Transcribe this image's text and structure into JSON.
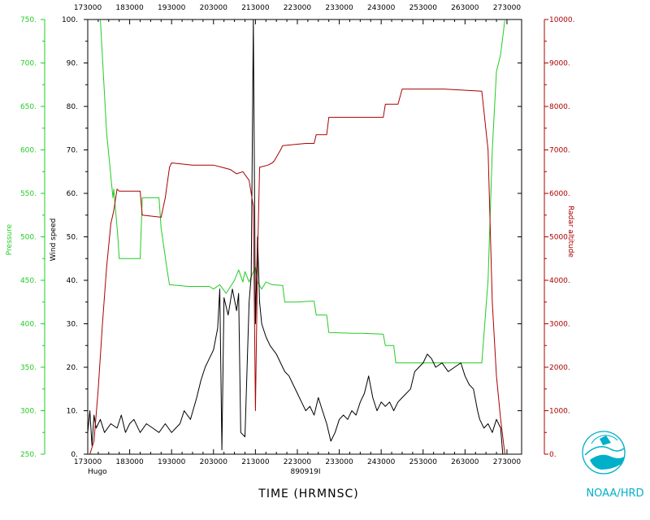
{
  "colors": {
    "pressure": "#22cc22",
    "wind": "#000000",
    "radar": "#aa0000",
    "axis": "#000000",
    "logo": "#00b0c8"
  },
  "chart_data": {
    "type": "line",
    "xlabel": "TIME (HRMNSC)",
    "storm_name": "Hugo",
    "flight_id": "890919I",
    "credit": "NOAA/HRD",
    "x_ticks": [
      "173000",
      "183000",
      "193000",
      "203000",
      "213000",
      "223000",
      "233000",
      "243000",
      "253000",
      "263000",
      "273000"
    ],
    "xlim": [
      0,
      10.35
    ],
    "axes": {
      "wind": {
        "label": "Wind speed",
        "ylim": [
          0,
          100
        ],
        "ticks": [
          "0.",
          "10.",
          "20.",
          "30.",
          "40.",
          "50.",
          "60.",
          "70.",
          "80.",
          "90.",
          "100."
        ]
      },
      "pressure": {
        "label": "Pressure",
        "ylim": [
          250,
          750
        ],
        "ticks": [
          "250.",
          "300.",
          "350.",
          "400.",
          "450.",
          "500.",
          "550.",
          "600.",
          "650.",
          "700.",
          "750."
        ]
      },
      "radar": {
        "label": "Radar altitude",
        "ylim": [
          0,
          10000
        ],
        "ticks": [
          "0.",
          "1000.",
          "2000.",
          "3000.",
          "4000.",
          "5000.",
          "6000.",
          "7000.",
          "8000.",
          "9000.",
          "10000."
        ]
      }
    },
    "series": [
      {
        "name": "Pressure",
        "axis": "pressure",
        "points": [
          [
            0.3,
            750
          ],
          [
            0.45,
            620
          ],
          [
            0.6,
            545
          ],
          [
            0.62,
            555
          ],
          [
            0.72,
            500
          ],
          [
            0.75,
            475
          ],
          [
            1.25,
            475
          ],
          [
            1.3,
            545
          ],
          [
            1.7,
            545
          ],
          [
            1.75,
            510
          ],
          [
            1.9,
            460
          ],
          [
            1.95,
            445
          ],
          [
            2.4,
            443
          ],
          [
            2.9,
            443
          ],
          [
            3.0,
            440
          ],
          [
            3.15,
            445
          ],
          [
            3.3,
            435
          ],
          [
            3.5,
            450
          ],
          [
            3.6,
            462
          ],
          [
            3.7,
            448
          ],
          [
            3.75,
            460
          ],
          [
            3.85,
            448
          ],
          [
            3.95,
            460
          ],
          [
            4.0,
            465
          ],
          [
            4.05,
            448
          ],
          [
            4.15,
            440
          ],
          [
            4.25,
            448
          ],
          [
            4.4,
            445
          ],
          [
            4.65,
            444
          ],
          [
            4.7,
            425
          ],
          [
            5.0,
            425
          ],
          [
            5.3,
            426
          ],
          [
            5.4,
            426
          ],
          [
            5.45,
            410
          ],
          [
            5.7,
            410
          ],
          [
            5.75,
            390
          ],
          [
            6.35,
            389
          ],
          [
            6.55,
            389
          ],
          [
            7.05,
            388
          ],
          [
            7.1,
            375
          ],
          [
            7.3,
            375
          ],
          [
            7.35,
            355
          ],
          [
            8.5,
            355
          ],
          [
            9.4,
            355
          ],
          [
            9.55,
            450
          ],
          [
            9.65,
            600
          ],
          [
            9.75,
            690
          ],
          [
            9.85,
            710
          ],
          [
            9.95,
            750
          ]
        ]
      },
      {
        "name": "Wind speed",
        "axis": "wind",
        "points": [
          [
            0.0,
            5
          ],
          [
            0.05,
            10
          ],
          [
            0.1,
            2
          ],
          [
            0.15,
            9
          ],
          [
            0.2,
            6
          ],
          [
            0.3,
            8
          ],
          [
            0.4,
            5
          ],
          [
            0.55,
            7
          ],
          [
            0.7,
            6
          ],
          [
            0.8,
            9
          ],
          [
            0.9,
            5
          ],
          [
            1.0,
            7
          ],
          [
            1.1,
            8
          ],
          [
            1.25,
            5
          ],
          [
            1.4,
            7
          ],
          [
            1.55,
            6
          ],
          [
            1.7,
            5
          ],
          [
            1.85,
            7
          ],
          [
            2.0,
            5
          ],
          [
            2.1,
            6
          ],
          [
            2.2,
            7
          ],
          [
            2.3,
            10
          ],
          [
            2.45,
            8
          ],
          [
            2.6,
            13
          ],
          [
            2.7,
            17
          ],
          [
            2.8,
            20
          ],
          [
            2.9,
            22
          ],
          [
            3.0,
            24
          ],
          [
            3.1,
            29
          ],
          [
            3.15,
            38
          ],
          [
            3.2,
            1
          ],
          [
            3.25,
            36
          ],
          [
            3.35,
            32
          ],
          [
            3.45,
            38
          ],
          [
            3.55,
            33
          ],
          [
            3.6,
            37
          ],
          [
            3.65,
            5
          ],
          [
            3.75,
            4
          ],
          [
            3.85,
            35
          ],
          [
            3.9,
            41
          ],
          [
            3.95,
            100
          ],
          [
            4.0,
            30
          ],
          [
            4.05,
            50
          ],
          [
            4.1,
            35
          ],
          [
            4.15,
            30
          ],
          [
            4.25,
            27
          ],
          [
            4.35,
            25
          ],
          [
            4.5,
            23
          ],
          [
            4.6,
            21
          ],
          [
            4.7,
            19
          ],
          [
            4.8,
            18
          ],
          [
            4.9,
            16
          ],
          [
            5.0,
            14
          ],
          [
            5.1,
            12
          ],
          [
            5.2,
            10
          ],
          [
            5.3,
            11
          ],
          [
            5.4,
            9
          ],
          [
            5.5,
            13
          ],
          [
            5.6,
            10
          ],
          [
            5.7,
            7
          ],
          [
            5.8,
            3
          ],
          [
            5.9,
            5
          ],
          [
            6.0,
            8
          ],
          [
            6.1,
            9
          ],
          [
            6.2,
            8
          ],
          [
            6.3,
            10
          ],
          [
            6.4,
            9
          ],
          [
            6.5,
            12
          ],
          [
            6.6,
            14
          ],
          [
            6.7,
            18
          ],
          [
            6.8,
            13
          ],
          [
            6.9,
            10
          ],
          [
            7.0,
            12
          ],
          [
            7.1,
            11
          ],
          [
            7.2,
            12
          ],
          [
            7.3,
            10
          ],
          [
            7.4,
            12
          ],
          [
            7.5,
            13
          ],
          [
            7.6,
            14
          ],
          [
            7.7,
            15
          ],
          [
            7.8,
            19
          ],
          [
            7.9,
            20
          ],
          [
            8.0,
            21
          ],
          [
            8.1,
            23
          ],
          [
            8.2,
            22
          ],
          [
            8.3,
            20
          ],
          [
            8.45,
            21
          ],
          [
            8.6,
            19
          ],
          [
            8.75,
            20
          ],
          [
            8.9,
            21
          ],
          [
            9.0,
            18
          ],
          [
            9.1,
            16
          ],
          [
            9.2,
            15
          ],
          [
            9.3,
            10
          ],
          [
            9.35,
            8
          ],
          [
            9.45,
            6
          ],
          [
            9.55,
            7
          ],
          [
            9.65,
            5
          ],
          [
            9.75,
            8
          ],
          [
            9.85,
            6
          ],
          [
            9.9,
            0
          ]
        ]
      },
      {
        "name": "Radar altitude",
        "axis": "radar",
        "points": [
          [
            0.05,
            0
          ],
          [
            0.15,
            300
          ],
          [
            0.25,
            1500
          ],
          [
            0.35,
            3000
          ],
          [
            0.45,
            4300
          ],
          [
            0.55,
            5300
          ],
          [
            0.62,
            5600
          ],
          [
            0.7,
            6100
          ],
          [
            0.75,
            6050
          ],
          [
            1.25,
            6050
          ],
          [
            1.3,
            5500
          ],
          [
            1.75,
            5450
          ],
          [
            1.85,
            5900
          ],
          [
            1.95,
            6600
          ],
          [
            2.0,
            6700
          ],
          [
            2.5,
            6650
          ],
          [
            3.0,
            6650
          ],
          [
            3.2,
            6600
          ],
          [
            3.4,
            6550
          ],
          [
            3.55,
            6450
          ],
          [
            3.7,
            6500
          ],
          [
            3.85,
            6300
          ],
          [
            3.95,
            5700
          ],
          [
            4.0,
            1000
          ],
          [
            4.05,
            4500
          ],
          [
            4.1,
            6600
          ],
          [
            4.3,
            6650
          ],
          [
            4.4,
            6700
          ],
          [
            4.45,
            6750
          ],
          [
            4.6,
            7000
          ],
          [
            4.65,
            7100
          ],
          [
            5.2,
            7150
          ],
          [
            5.3,
            7150
          ],
          [
            5.4,
            7150
          ],
          [
            5.45,
            7350
          ],
          [
            5.7,
            7350
          ],
          [
            5.75,
            7750
          ],
          [
            6.2,
            7750
          ],
          [
            6.35,
            7750
          ],
          [
            6.6,
            7750
          ],
          [
            7.05,
            7750
          ],
          [
            7.1,
            8050
          ],
          [
            7.4,
            8050
          ],
          [
            7.5,
            8400
          ],
          [
            8.15,
            8400
          ],
          [
            8.5,
            8400
          ],
          [
            9.4,
            8350
          ],
          [
            9.55,
            7000
          ],
          [
            9.65,
            3500
          ],
          [
            9.75,
            1800
          ],
          [
            9.85,
            800
          ],
          [
            9.95,
            0
          ]
        ]
      }
    ]
  }
}
